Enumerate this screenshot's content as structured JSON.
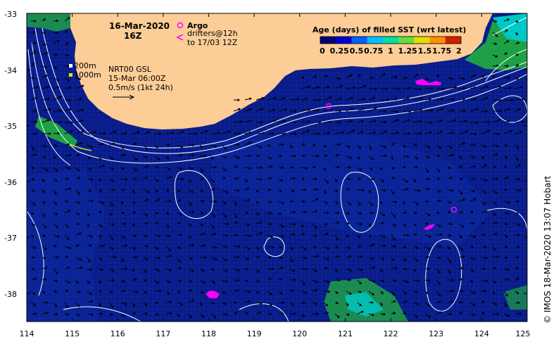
{
  "map": {
    "title_date": "16-Mar-2020",
    "title_time": "16Z",
    "lon_ticks": [
      "114",
      "115",
      "116",
      "117",
      "118",
      "119",
      "120",
      "121",
      "122",
      "123",
      "124",
      "125"
    ],
    "lat_ticks": [
      "-33",
      "-34",
      "-35",
      "-36",
      "-37",
      "-38"
    ]
  },
  "legend": {
    "argo_label": "Argo",
    "drifters_label": "drifters@12h",
    "drifters_sub": "to 17/03 12Z",
    "argo_color": "#ff00ff",
    "drifter_color": "#ff00ff"
  },
  "colorbar": {
    "title": "Age (days) of filled SST (wrt latest)",
    "tick_labels": [
      "0",
      "0.25",
      "0.5",
      "0.75",
      "1",
      "1.25",
      "1.5",
      "1.75",
      "2"
    ],
    "colors": [
      "#000070",
      "#0000d0",
      "#0060ff",
      "#00c0ff",
      "#00e0a0",
      "#60e040",
      "#e0e000",
      "#ff9000",
      "#d02000"
    ]
  },
  "contours": {
    "label_200": "200m",
    "label_1000": "1000m",
    "color_200": "#ffffff",
    "color_1000": "#e0e000"
  },
  "info": {
    "product": "NRT00 GSL",
    "valid": "15-Mar 06:00Z",
    "scale": "0.5m/s (1kt 24h)"
  },
  "credit": "© IMOS 18-Mar-2020 13:07 Hobart",
  "colors": {
    "land": "#fccd96",
    "sea": "#0a1e8c",
    "sea_alt": "#0c2aa0",
    "green": "#1ea046",
    "cyan": "#00c8c8"
  }
}
